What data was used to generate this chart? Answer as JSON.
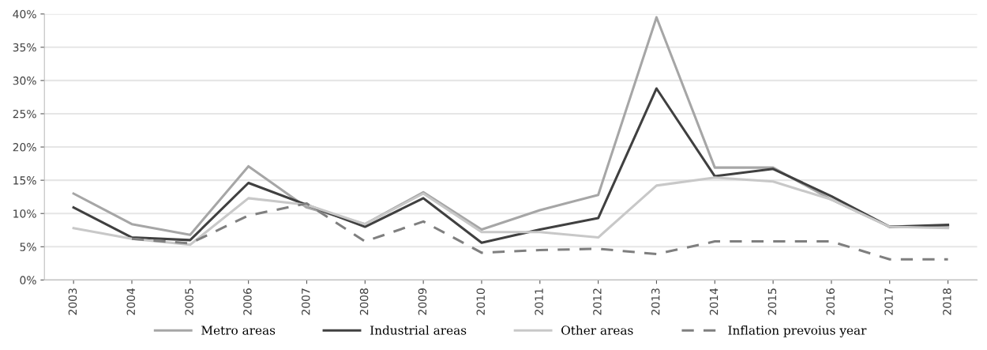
{
  "chart_data": {
    "type": "line",
    "categories": [
      "2003",
      "2004",
      "2005",
      "2006",
      "2007",
      "2008",
      "2009",
      "2010",
      "2011",
      "2012",
      "2013",
      "2014",
      "2015",
      "2016",
      "2017",
      "2018"
    ],
    "series": [
      {
        "name": "Metro areas",
        "color": "#a6a6a6",
        "line_style": "solid",
        "values": [
          13.0,
          8.4,
          6.8,
          17.1,
          10.9,
          8.4,
          13.2,
          7.6,
          10.5,
          12.8,
          39.5,
          16.9,
          16.9,
          12.1,
          8.0,
          8.0
        ]
      },
      {
        "name": "Industrial areas",
        "color": "#404040",
        "line_style": "solid",
        "values": [
          10.9,
          6.4,
          6.0,
          14.6,
          11.3,
          8.0,
          12.3,
          5.6,
          7.6,
          9.3,
          28.8,
          15.6,
          16.7,
          12.6,
          8.0,
          8.3
        ]
      },
      {
        "name": "Other areas",
        "color": "#c8c8c8",
        "line_style": "solid",
        "values": [
          7.8,
          6.2,
          5.3,
          12.3,
          11.3,
          8.4,
          13.0,
          7.2,
          7.2,
          6.4,
          14.2,
          15.4,
          14.8,
          12.1,
          8.0,
          7.8
        ]
      },
      {
        "name": "Inflation prevoius year",
        "color": "#7f7f7f",
        "line_style": "dashed",
        "values": [
          null,
          6.2,
          5.5,
          9.7,
          11.5,
          5.8,
          8.8,
          4.1,
          4.5,
          4.7,
          3.9,
          5.8,
          5.8,
          5.8,
          3.1,
          3.1
        ]
      }
    ],
    "ylim": [
      0,
      40
    ],
    "yticks": [
      {
        "value": 0,
        "label": "0%"
      },
      {
        "value": 5,
        "label": "5%"
      },
      {
        "value": 10,
        "label": "10%"
      },
      {
        "value": 15,
        "label": "15%"
      },
      {
        "value": 20,
        "label": "20%"
      },
      {
        "value": 25,
        "label": "25%"
      },
      {
        "value": 30,
        "label": "30%"
      },
      {
        "value": 35,
        "label": "35%"
      },
      {
        "value": 40,
        "label": "40%"
      }
    ],
    "grid": "y",
    "legend": "bottom",
    "marker": "none"
  }
}
